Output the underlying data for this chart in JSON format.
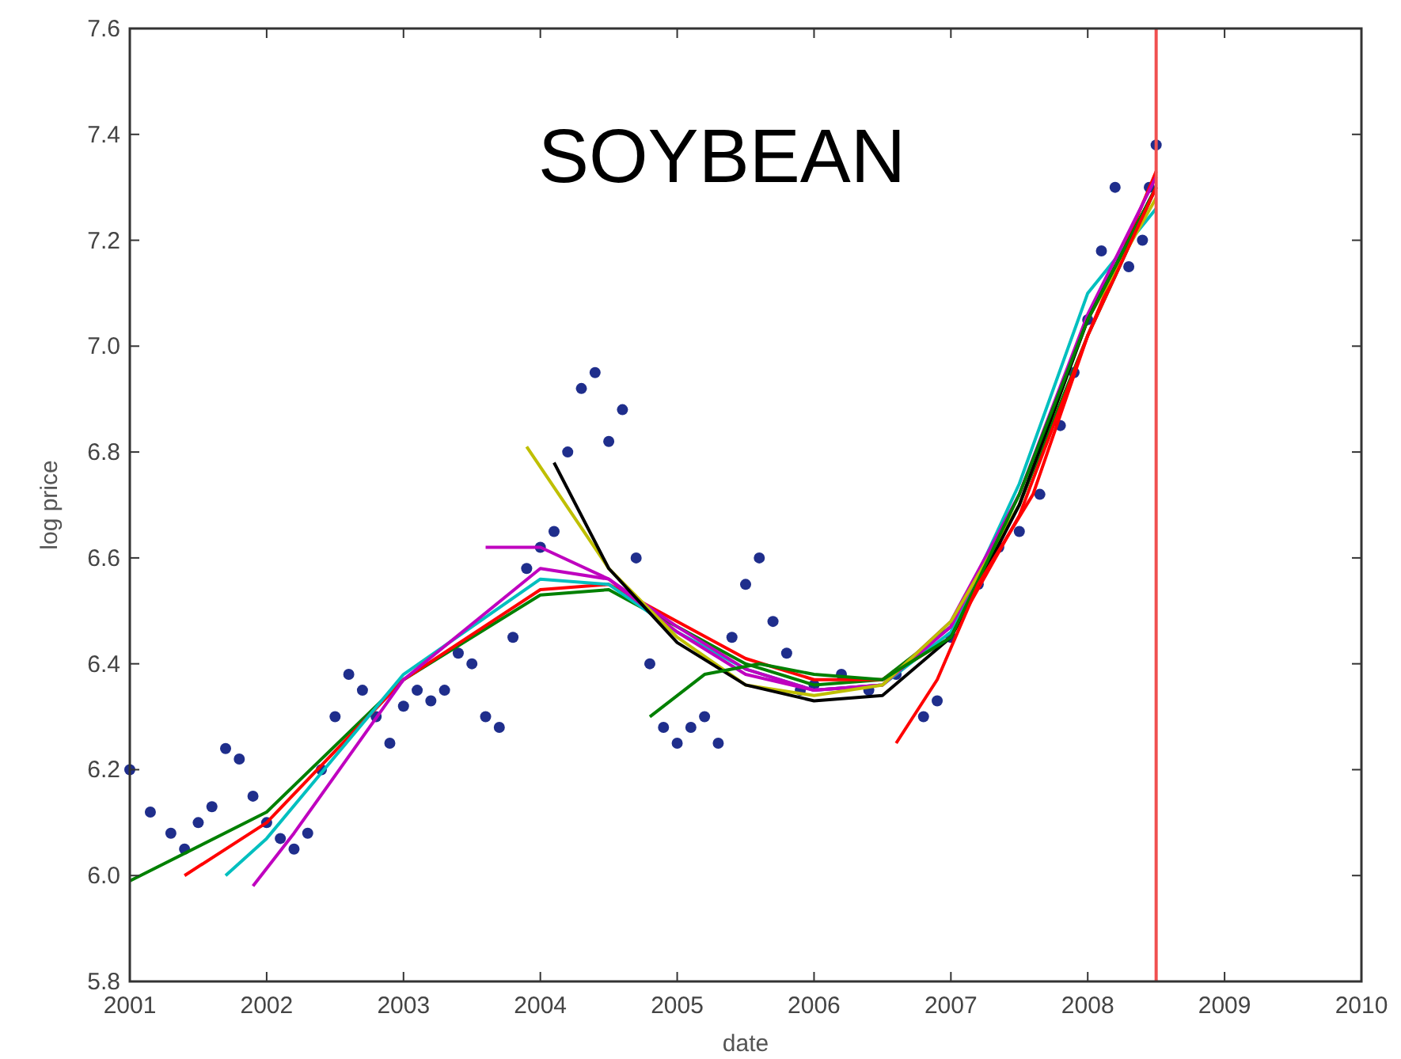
{
  "chart_data": {
    "type": "line",
    "title": "SOYBEAN",
    "xlabel": "date",
    "ylabel": "log price",
    "xlim": [
      2001,
      2010
    ],
    "xticks": [
      2001,
      2002,
      2003,
      2004,
      2005,
      2006,
      2007,
      2008,
      2009,
      2010
    ],
    "ylim": [
      5.8,
      7.6
    ],
    "yticks": [
      {
        "value": 5.8,
        "label": "5.8"
      },
      {
        "value": 6.0,
        "label": "6.0"
      },
      {
        "value": 6.2,
        "label": "6.2"
      },
      {
        "value": 6.4,
        "label": "6.4"
      },
      {
        "value": 6.6,
        "label": "6.6"
      },
      {
        "value": 6.8,
        "label": "6.8"
      },
      {
        "value": 7.0,
        "label": "7.0"
      },
      {
        "value": 7.2,
        "label": "7.2"
      },
      {
        "value": 7.4,
        "label": "7.4"
      },
      {
        "value": 7.6,
        "label": "7.6"
      }
    ],
    "grid": false,
    "ref_lines": [
      {
        "axis": "x",
        "value": 2008.5,
        "color": "#f05050"
      }
    ],
    "series": [
      {
        "type": "scatter",
        "marker": "circle",
        "color": "#1f2e8c",
        "x": [
          2001.0,
          2001.15,
          2001.3,
          2001.4,
          2001.5,
          2001.6,
          2001.7,
          2001.8,
          2001.9,
          2002.0,
          2002.1,
          2002.2,
          2002.3,
          2002.4,
          2002.5,
          2002.6,
          2002.7,
          2002.8,
          2002.9,
          2003.0,
          2003.1,
          2003.2,
          2003.3,
          2003.4,
          2003.5,
          2003.6,
          2003.7,
          2003.8,
          2003.9,
          2004.0,
          2004.1,
          2004.2,
          2004.3,
          2004.4,
          2004.5,
          2004.6,
          2004.7,
          2004.8,
          2004.9,
          2005.0,
          2005.1,
          2005.2,
          2005.3,
          2005.4,
          2005.5,
          2005.6,
          2005.7,
          2005.8,
          2005.9,
          2006.0,
          2006.2,
          2006.4,
          2006.6,
          2006.8,
          2006.9,
          2007.0,
          2007.2,
          2007.35,
          2007.5,
          2007.65,
          2007.8,
          2007.9,
          2008.0,
          2008.1,
          2008.2,
          2008.3,
          2008.4,
          2008.45,
          2008.5
        ],
        "values": [
          6.2,
          6.12,
          6.08,
          6.05,
          6.1,
          6.13,
          6.24,
          6.22,
          6.15,
          6.1,
          6.07,
          6.05,
          6.08,
          6.2,
          6.3,
          6.38,
          6.35,
          6.3,
          6.25,
          6.32,
          6.35,
          6.33,
          6.35,
          6.42,
          6.4,
          6.3,
          6.28,
          6.45,
          6.58,
          6.62,
          6.65,
          6.8,
          6.92,
          6.95,
          6.82,
          6.88,
          6.6,
          6.4,
          6.28,
          6.25,
          6.28,
          6.3,
          6.25,
          6.45,
          6.55,
          6.6,
          6.48,
          6.42,
          6.35,
          6.36,
          6.38,
          6.35,
          6.38,
          6.3,
          6.33,
          6.45,
          6.55,
          6.62,
          6.65,
          6.72,
          6.85,
          6.95,
          7.05,
          7.18,
          7.3,
          7.15,
          7.2,
          7.3,
          7.38
        ]
      },
      {
        "color": "#008000",
        "x": [
          2001.0,
          2002,
          2003,
          2004,
          2004.5,
          2005,
          2005.5,
          2006,
          2006.5,
          2007,
          2007.5,
          2008,
          2008.5
        ],
        "values": [
          5.99,
          6.12,
          6.37,
          6.53,
          6.54,
          6.47,
          6.4,
          6.36,
          6.37,
          6.47,
          6.7,
          7.02,
          7.3
        ]
      },
      {
        "color": "#ff0000",
        "x": [
          2001.4,
          2002,
          2003,
          2004,
          2004.5,
          2005,
          2005.5,
          2006,
          2006.5,
          2007,
          2007.5,
          2008,
          2008.5
        ],
        "values": [
          6.0,
          6.1,
          6.37,
          6.54,
          6.55,
          6.48,
          6.41,
          6.37,
          6.37,
          6.45,
          6.68,
          7.02,
          7.33
        ]
      },
      {
        "color": "#00bfbf",
        "x": [
          2001.7,
          2002,
          2003,
          2004,
          2004.5,
          2005,
          2005.5,
          2006,
          2006.5,
          2007,
          2007.5,
          2008,
          2008.5
        ],
        "values": [
          6.0,
          6.07,
          6.38,
          6.56,
          6.55,
          6.46,
          6.39,
          6.35,
          6.36,
          6.46,
          6.74,
          7.1,
          7.26
        ]
      },
      {
        "color": "#bf00bf",
        "x": [
          2001.9,
          2002.2,
          2003,
          2004,
          2004.5,
          2005,
          2005.5,
          2006,
          2006.5,
          2007,
          2007.5,
          2008,
          2008.5
        ],
        "values": [
          5.98,
          6.08,
          6.37,
          6.58,
          6.56,
          6.46,
          6.38,
          6.35,
          6.36,
          6.48,
          6.72,
          7.06,
          7.32
        ]
      },
      {
        "color": "#bf00bf",
        "x": [
          2003.6,
          2004,
          2004.5,
          2005,
          2005.5,
          2006,
          2006.5,
          2007,
          2007.5,
          2008,
          2008.5
        ],
        "values": [
          6.62,
          6.62,
          6.56,
          6.47,
          6.39,
          6.35,
          6.36,
          6.47,
          6.72,
          7.05,
          7.3
        ]
      },
      {
        "color": "#bfbf00",
        "x": [
          2003.9,
          2004.5,
          2005,
          2005.5,
          2006,
          2006.5,
          2007,
          2007.5,
          2008,
          2008.5
        ],
        "values": [
          6.81,
          6.58,
          6.45,
          6.36,
          6.34,
          6.36,
          6.48,
          6.7,
          7.05,
          7.28
        ]
      },
      {
        "color": "#000000",
        "x": [
          2004.1,
          2004.5,
          2005,
          2005.5,
          2006,
          2006.5,
          2007,
          2007.5,
          2008,
          2008.5
        ],
        "values": [
          6.78,
          6.58,
          6.44,
          6.36,
          6.33,
          6.34,
          6.45,
          6.7,
          7.05,
          7.3
        ]
      },
      {
        "color": "#008000",
        "x": [
          2004.8,
          2005.2,
          2005.6,
          2006,
          2006.5,
          2007,
          2007.5,
          2008,
          2008.5
        ],
        "values": [
          6.3,
          6.38,
          6.4,
          6.38,
          6.37,
          6.45,
          6.72,
          7.05,
          7.3
        ]
      },
      {
        "color": "#ff0000",
        "x": [
          2006.6,
          2006.9,
          2007.2,
          2007.6,
          2008,
          2008.5
        ],
        "values": [
          6.25,
          6.37,
          6.55,
          6.72,
          7.02,
          7.3
        ]
      }
    ]
  }
}
